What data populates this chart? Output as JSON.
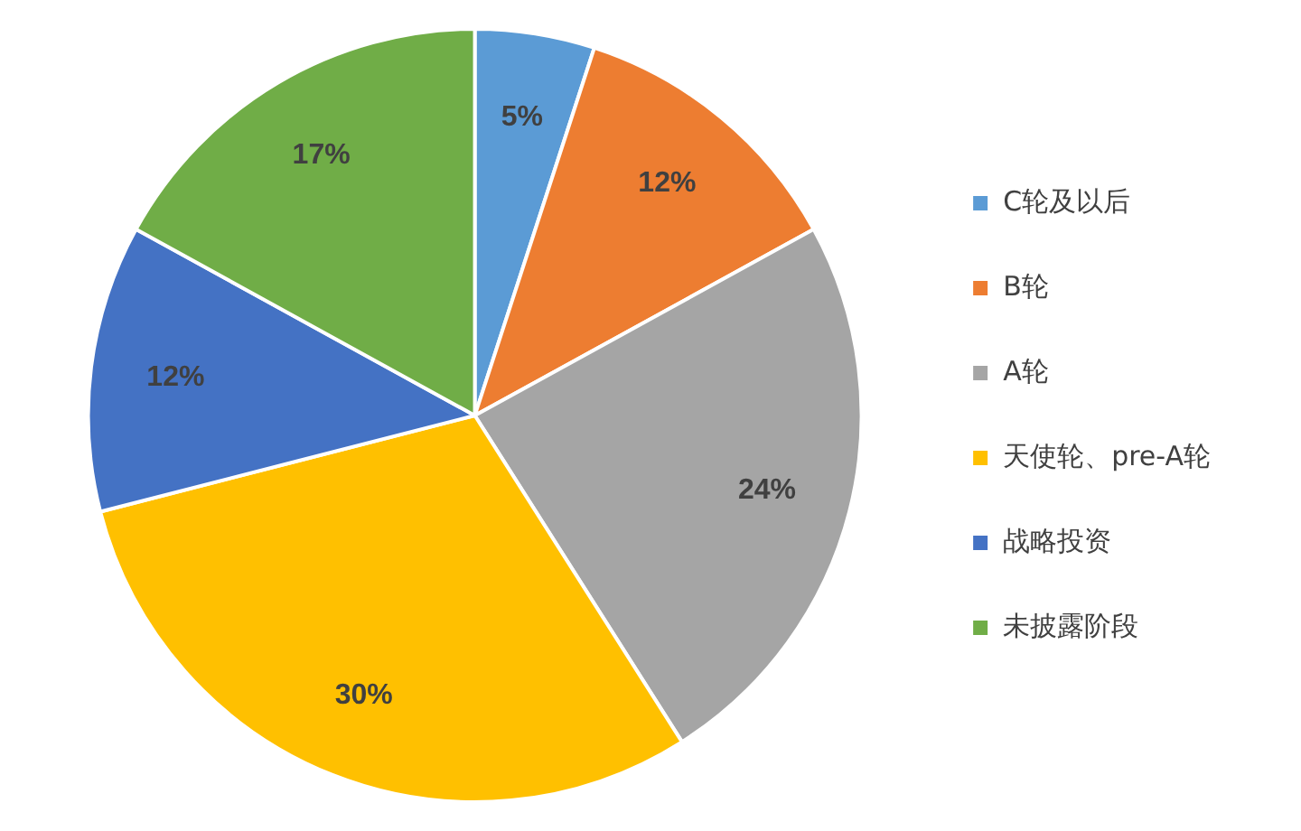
{
  "chart_data": {
    "type": "pie",
    "categories": [
      "C轮及以后",
      "B轮",
      "A轮",
      "天使轮、pre-A轮",
      "战略投资",
      "未披露阶段"
    ],
    "values": [
      5,
      12,
      24,
      30,
      12,
      17
    ],
    "colors": [
      "#5b9bd5",
      "#ed7d31",
      "#a5a5a5",
      "#ffc000",
      "#4472c4",
      "#70ad47"
    ],
    "value_labels": [
      "5%",
      "12%",
      "24%",
      "30%",
      "12%",
      "17%"
    ],
    "legend": "right"
  }
}
